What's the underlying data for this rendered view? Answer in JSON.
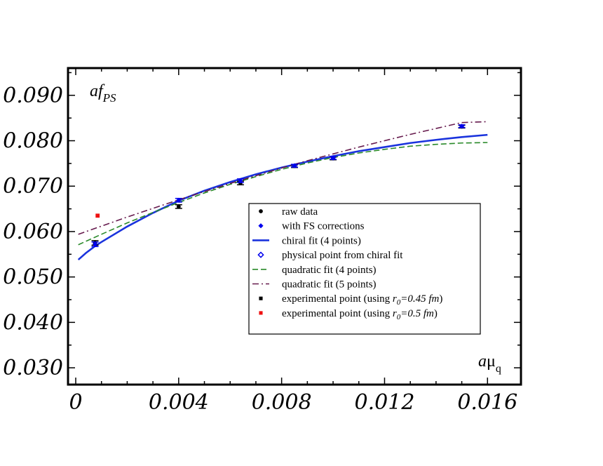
{
  "chart_data": {
    "type": "line",
    "ylabel": {
      "main": "af",
      "sub": "PS"
    },
    "xlabel": {
      "main": "a",
      "greek": "μ",
      "sub": "q"
    },
    "xlim": [
      -0.0003,
      0.0173
    ],
    "ylim": [
      0.0263,
      0.096
    ],
    "xticks": [
      0,
      0.004,
      0.008,
      0.012,
      0.016
    ],
    "xtick_labels": [
      "0",
      "0.004",
      "0.008",
      "0.012",
      "0.016"
    ],
    "yticks": [
      0.03,
      0.04,
      0.05,
      0.06,
      0.07,
      0.08,
      0.09
    ],
    "ytick_labels": [
      "0.030",
      "0.040",
      "0.050",
      "0.060",
      "0.070",
      "0.080",
      "0.090"
    ],
    "grid": false,
    "legend_position": "center-right",
    "series": [
      {
        "name": "raw data",
        "kind": "points",
        "marker": "circle",
        "color": "#000000",
        "x": [
          0.00075,
          0.004,
          0.0064,
          0.0085,
          0.01,
          0.015
        ],
        "y": [
          0.0575,
          0.0655,
          0.0707,
          0.0744,
          0.0761,
          0.0831
        ],
        "err": [
          0.0005,
          0.0004,
          0.0004,
          0.0003,
          0.0003,
          0.0003
        ]
      },
      {
        "name": "with FS corrections",
        "kind": "points",
        "marker": "diamond",
        "color": "#0000ee",
        "x": [
          0.00075,
          0.004,
          0.0064,
          0.0085,
          0.01,
          0.015
        ],
        "y": [
          0.0572,
          0.0669,
          0.0712,
          0.0745,
          0.0762,
          0.0832
        ],
        "err": [
          0.0005,
          0.0004,
          0.0004,
          0.0003,
          0.0003,
          0.0003
        ]
      },
      {
        "name": "chiral fit  (4 points)",
        "kind": "line",
        "style": "solid",
        "color": "#1a33dd",
        "x": [
          0.0001,
          0.0004,
          0.00075,
          0.001,
          0.002,
          0.003,
          0.004,
          0.005,
          0.006,
          0.007,
          0.008,
          0.009,
          0.01,
          0.011,
          0.012,
          0.013,
          0.014,
          0.015,
          0.016
        ],
        "y": [
          0.0538,
          0.0553,
          0.0568,
          0.0577,
          0.0611,
          0.0641,
          0.0668,
          0.069,
          0.0709,
          0.0726,
          0.0741,
          0.0754,
          0.0766,
          0.0777,
          0.0786,
          0.0795,
          0.0802,
          0.0808,
          0.0813
        ]
      },
      {
        "name": "physical point from chiral fit",
        "kind": "points",
        "marker": "open-diamond",
        "color": "#0000ee",
        "x": [],
        "y": []
      },
      {
        "name": "quadratic fit (4 points)",
        "kind": "line",
        "style": "dashed",
        "color": "#2a8a2a",
        "x": [
          0.0001,
          0.001,
          0.002,
          0.003,
          0.004,
          0.005,
          0.006,
          0.007,
          0.008,
          0.009,
          0.01,
          0.011,
          0.012,
          0.013,
          0.014,
          0.015,
          0.016
        ],
        "y": [
          0.0571,
          0.0594,
          0.0619,
          0.0642,
          0.0664,
          0.0685,
          0.0704,
          0.0721,
          0.0737,
          0.0751,
          0.0763,
          0.0773,
          0.0781,
          0.0788,
          0.0792,
          0.0795,
          0.0796
        ]
      },
      {
        "name": "quadratic fit (5 points)",
        "kind": "line",
        "style": "dashdot",
        "color": "#661a4d",
        "x": [
          0.0001,
          0.001,
          0.002,
          0.003,
          0.004,
          0.005,
          0.006,
          0.007,
          0.008,
          0.009,
          0.01,
          0.011,
          0.012,
          0.013,
          0.014,
          0.015,
          0.016
        ],
        "y": [
          0.0594,
          0.0612,
          0.0632,
          0.0651,
          0.067,
          0.0688,
          0.0706,
          0.0723,
          0.074,
          0.0756,
          0.0771,
          0.0786,
          0.08,
          0.0814,
          0.0827,
          0.084,
          0.0842
        ]
      },
      {
        "name": "experimental point (using ",
        "r": "r",
        "r_sub": "0",
        "r_val": "=0.45 fm",
        "tail": ")",
        "kind": "points",
        "marker": "square",
        "color": "#000000",
        "x": [],
        "y": []
      },
      {
        "name": "experimental point (using ",
        "r": "r",
        "r_sub": "0",
        "r_val": "=0.5  fm",
        "tail": ")",
        "kind": "points",
        "marker": "square",
        "color": "#ee1111",
        "x": [
          0.00085
        ],
        "y": [
          0.0635
        ]
      }
    ]
  }
}
